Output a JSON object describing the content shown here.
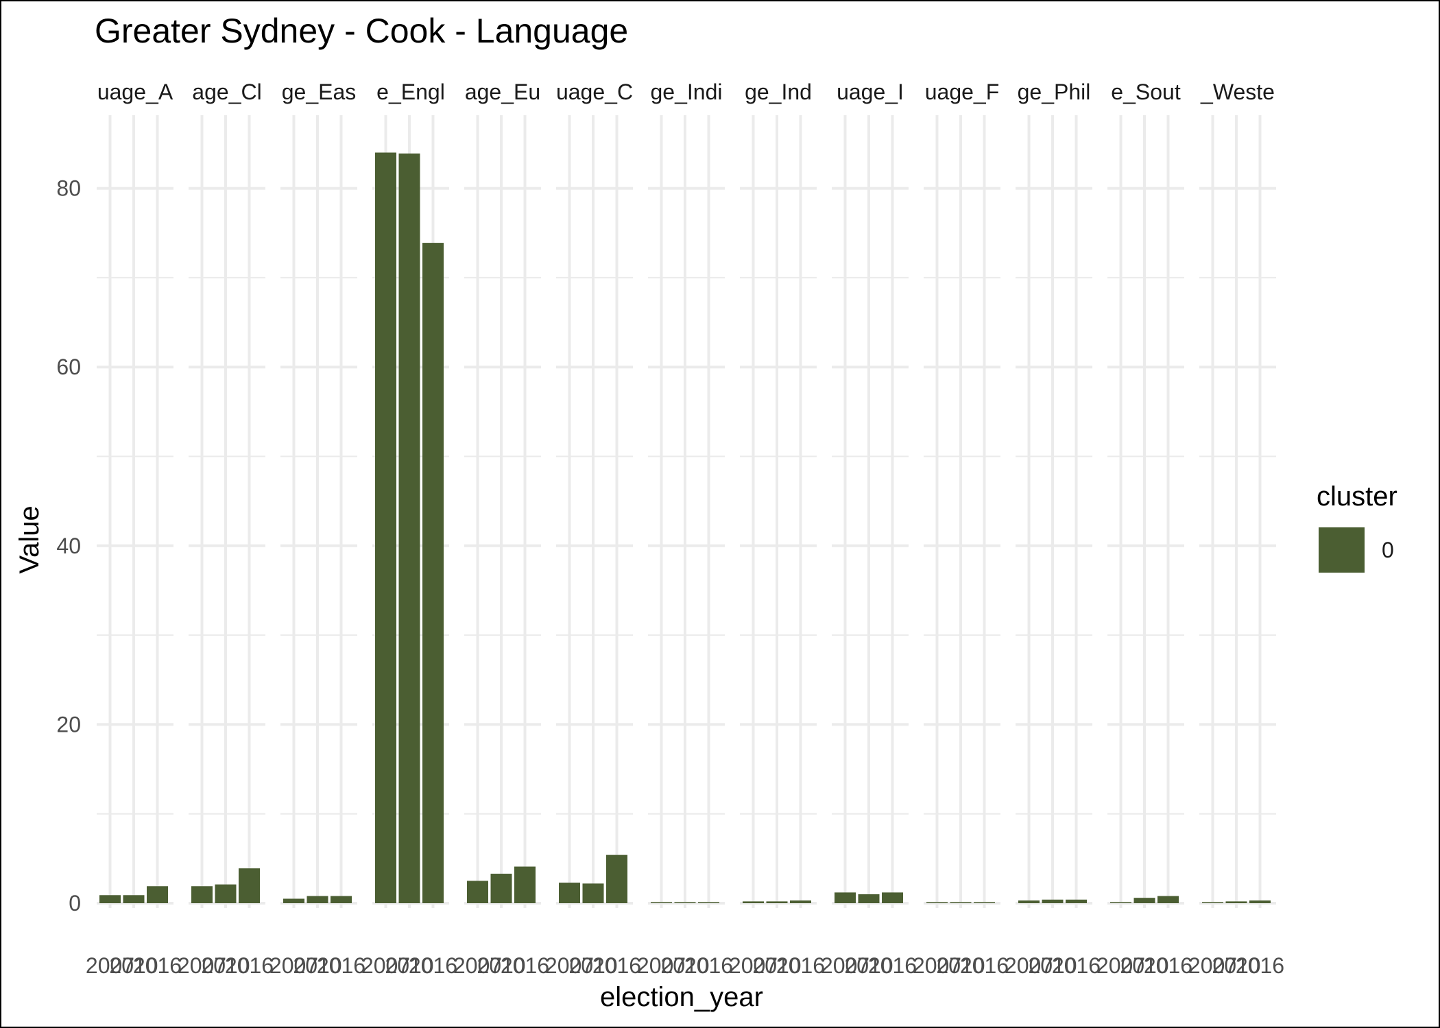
{
  "chart_data": {
    "type": "bar",
    "title": "Greater Sydney - Cook - Language",
    "xlabel": "election_year",
    "ylabel": "Value",
    "ylim": [
      0,
      88
    ],
    "yticks": [
      0,
      20,
      40,
      60,
      80
    ],
    "grid": true,
    "legend": {
      "title": "cluster",
      "position": "right",
      "entries": [
        {
          "label": "0",
          "color": "#4b5e32"
        }
      ]
    },
    "bar_color": "#4b5e32",
    "categories": [
      "2007",
      "2010",
      "2016"
    ],
    "tick_labels": [
      "2007",
      "2010",
      "2016"
    ],
    "facets": [
      {
        "label": "uage_A",
        "values": [
          0.9,
          0.9,
          1.9
        ]
      },
      {
        "label": "age_Cl",
        "values": [
          1.9,
          2.1,
          3.9
        ]
      },
      {
        "label": "ge_Eas",
        "values": [
          0.5,
          0.8,
          0.8
        ]
      },
      {
        "label": "e_Engl",
        "values": [
          84.0,
          83.9,
          73.9
        ]
      },
      {
        "label": "age_Eu",
        "values": [
          2.5,
          3.3,
          4.1
        ]
      },
      {
        "label": "uage_C",
        "values": [
          2.3,
          2.2,
          5.4
        ]
      },
      {
        "label": "ge_Indi",
        "values": [
          0.0,
          0.0,
          0.0
        ]
      },
      {
        "label": "ge_Ind",
        "values": [
          0.2,
          0.2,
          0.3
        ]
      },
      {
        "label": "uage_I",
        "values": [
          1.2,
          1.0,
          1.2
        ]
      },
      {
        "label": "uage_F",
        "values": [
          0.1,
          0.1,
          0.1
        ]
      },
      {
        "label": "ge_Phil",
        "values": [
          0.3,
          0.4,
          0.4
        ]
      },
      {
        "label": "e_Sout",
        "values": [
          0.1,
          0.6,
          0.8
        ]
      },
      {
        "label": "_Weste",
        "values": [
          0.1,
          0.2,
          0.3
        ]
      }
    ]
  }
}
